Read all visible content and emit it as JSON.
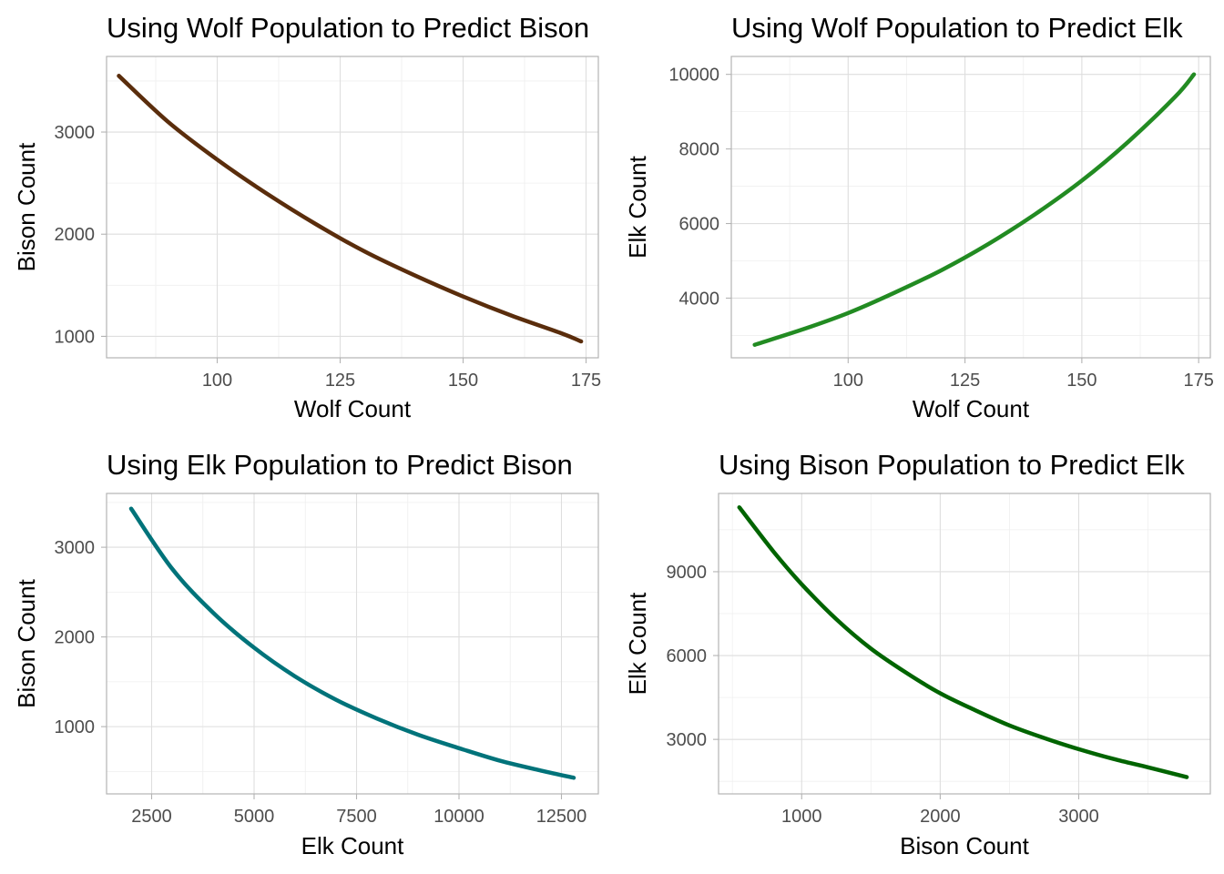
{
  "chart_data": [
    {
      "type": "line",
      "title": "Using Wolf Population to Predict Bison",
      "xlabel": "Wolf Count",
      "ylabel": "Bison Count",
      "xlim": [
        77.5,
        177.5
      ],
      "ylim": [
        790,
        3740
      ],
      "x_ticks": [
        100,
        125,
        150,
        175
      ],
      "y_ticks": [
        1000,
        2000,
        3000
      ],
      "grid": true,
      "color": "#5a2d0c",
      "series": [
        {
          "x": [
            80,
            90,
            100,
            110,
            120,
            130,
            140,
            150,
            160,
            170,
            174
          ],
          "y": [
            3550,
            3100,
            2730,
            2400,
            2100,
            1830,
            1600,
            1390,
            1200,
            1030,
            950
          ]
        }
      ]
    },
    {
      "type": "line",
      "title": "Using Wolf Population to Predict Elk",
      "xlabel": "Wolf Count",
      "ylabel": "Elk Count",
      "xlim": [
        75,
        177.5
      ],
      "ylim": [
        2400,
        10480
      ],
      "x_ticks": [
        100,
        125,
        150,
        175
      ],
      "y_ticks": [
        4000,
        6000,
        8000,
        10000
      ],
      "grid": true,
      "color": "#228b22",
      "series": [
        {
          "x": [
            80,
            90,
            100,
            110,
            120,
            130,
            140,
            150,
            160,
            170,
            174
          ],
          "y": [
            2750,
            3150,
            3600,
            4150,
            4750,
            5450,
            6250,
            7150,
            8200,
            9400,
            10000
          ]
        }
      ]
    },
    {
      "type": "line",
      "title": "Using Elk Population to Predict Bison",
      "xlabel": "Elk Count",
      "ylabel": "Bison Count",
      "xlim": [
        1400,
        13400
      ],
      "ylim": [
        250,
        3600
      ],
      "x_ticks": [
        2500,
        5000,
        7500,
        10000,
        12500
      ],
      "y_ticks": [
        1000,
        2000,
        3000
      ],
      "grid": true,
      "color": "#00737a",
      "series": [
        {
          "x": [
            2000,
            3000,
            4000,
            5000,
            6000,
            7000,
            8000,
            9000,
            10000,
            11000,
            12000,
            12800
          ],
          "y": [
            3430,
            2760,
            2270,
            1880,
            1560,
            1300,
            1090,
            910,
            760,
            620,
            510,
            430
          ]
        }
      ]
    },
    {
      "type": "line",
      "title": "Using Bison Population to Predict Elk",
      "xlabel": "Bison Count",
      "ylabel": "Elk Count",
      "xlim": [
        400,
        3950
      ],
      "ylim": [
        1050,
        11800
      ],
      "x_ticks": [
        1000,
        2000,
        3000
      ],
      "y_ticks": [
        3000,
        6000,
        9000
      ],
      "grid": true,
      "color": "#006400",
      "series": [
        {
          "x": [
            550,
            800,
            1000,
            1250,
            1500,
            1750,
            2000,
            2250,
            2500,
            2750,
            3000,
            3250,
            3500,
            3780
          ],
          "y": [
            11300,
            9700,
            8550,
            7300,
            6250,
            5400,
            4650,
            4050,
            3500,
            3050,
            2650,
            2300,
            2000,
            1650
          ]
        }
      ]
    }
  ]
}
